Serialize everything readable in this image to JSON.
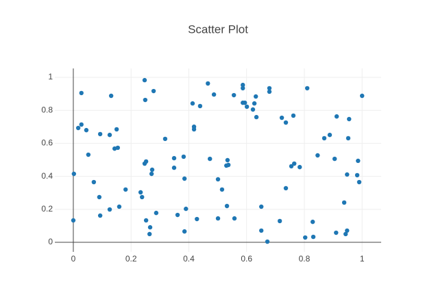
{
  "chart_data": {
    "type": "scatter",
    "title": "Scatter Plot",
    "color": "#1f77b4",
    "grid": true,
    "xlim": [
      -0.064,
      1.066
    ],
    "ylim": [
      -0.058,
      1.054
    ],
    "xticks": [
      0,
      0.2,
      0.4,
      0.6,
      0.8,
      1
    ],
    "yticks": [
      0,
      0.2,
      0.4,
      0.6,
      0.8,
      1
    ],
    "x": [
      0,
      0.002,
      0.017,
      0.028,
      0.028,
      0.045,
      0.052,
      0.071,
      0.09,
      0.093,
      0.093,
      0.126,
      0.126,
      0.131,
      0.143,
      0.15,
      0.154,
      0.159,
      0.181,
      0.233,
      0.238,
      0.247,
      0.249,
      0.247,
      0.252,
      0.252,
      0.264,
      0.266,
      0.271,
      0.273,
      0.278,
      0.287,
      0.318,
      0.349,
      0.349,
      0.361,
      0.382,
      0.385,
      0.385,
      0.39,
      0.413,
      0.418,
      0.418,
      0.428,
      0.439,
      0.466,
      0.473,
      0.487,
      0.501,
      0.501,
      0.515,
      0.53,
      0.532,
      0.534,
      0.537,
      0.556,
      0.558,
      0.587,
      0.587,
      0.587,
      0.594,
      0.601,
      0.622,
      0.627,
      0.632,
      0.634,
      0.651,
      0.651,
      0.672,
      0.679,
      0.679,
      0.715,
      0.722,
      0.736,
      0.736,
      0.755,
      0.762,
      0.765,
      0.784,
      0.803,
      0.81,
      0.829,
      0.831,
      0.846,
      0.869,
      0.888,
      0.905,
      0.91,
      0.912,
      0.938,
      0.943,
      0.948,
      0.948,
      0.952,
      0.955,
      0.983,
      0.986,
      0.99,
      1.0
    ],
    "values": [
      0.133,
      0.415,
      0.693,
      0.714,
      0.905,
      0.68,
      0.531,
      0.365,
      0.274,
      0.656,
      0.162,
      0.199,
      0.651,
      0.888,
      0.568,
      0.685,
      0.573,
      0.216,
      0.32,
      0.303,
      0.274,
      0.983,
      0.863,
      0.477,
      0.49,
      0.133,
      0.05,
      0.091,
      0.415,
      0.44,
      0.917,
      0.178,
      0.627,
      0.51,
      0.452,
      0.166,
      0.519,
      0.386,
      0.066,
      0.203,
      0.842,
      0.701,
      0.685,
      0.141,
      0.826,
      0.963,
      0.506,
      0.896,
      0.382,
      0.145,
      0.32,
      0.465,
      0.22,
      0.498,
      0.469,
      0.892,
      0.145,
      0.954,
      0.934,
      0.846,
      0.846,
      0.822,
      0.805,
      0.842,
      0.884,
      0.759,
      0.216,
      0.071,
      0.004,
      0.934,
      0.913,
      0.129,
      0.755,
      0.726,
      0.328,
      0.461,
      0.768,
      0.477,
      0.456,
      0.029,
      0.934,
      0.124,
      0.033,
      0.527,
      0.631,
      0.651,
      0.506,
      0.058,
      0.763,
      0.241,
      0.05,
      0.411,
      0.071,
      0.631,
      0.747,
      0.407,
      0.494,
      0.365,
      0.888
    ]
  }
}
